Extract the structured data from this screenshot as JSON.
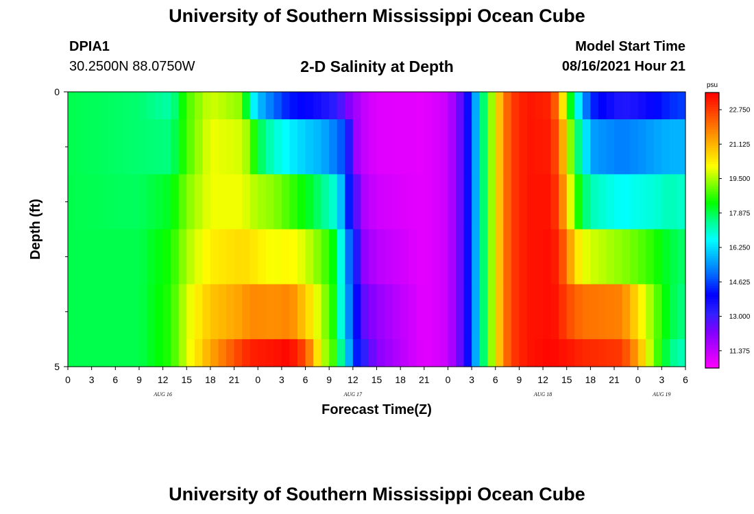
{
  "header": {
    "title": "University of Southern Mississippi Ocean Cube",
    "station_id": "DPIA1",
    "station_coords": "30.2500N  88.0750W",
    "subtitle": "2-D Salinity at Depth",
    "model_start_label": "Model Start Time",
    "model_start_value": "08/16/2021 Hour 21"
  },
  "footer": {
    "title": "University of Southern Mississippi Ocean Cube"
  },
  "chart_data": {
    "type": "heatmap",
    "title": "2-D Salinity at Depth",
    "xlabel": "Forecast Time(Z)",
    "ylabel": "Depth (ft)",
    "x_range_hours": [
      0,
      78
    ],
    "x_step_hours": 3,
    "x_tick_labels": [
      "0",
      "3",
      "6",
      "9",
      "12",
      "15",
      "18",
      "21",
      "0",
      "3",
      "6",
      "9",
      "12",
      "15",
      "18",
      "21",
      "0",
      "3",
      "6",
      "9",
      "12",
      "15",
      "18",
      "21",
      "0",
      "3",
      "6"
    ],
    "day_labels": [
      {
        "label": "AUG 16",
        "hour": 12
      },
      {
        "label": "AUG 17",
        "hour": 36
      },
      {
        "label": "AUG 18",
        "hour": 60
      },
      {
        "label": "AUG 19",
        "hour": 75
      }
    ],
    "y_range": [
      0,
      5
    ],
    "y_tick_labels": [
      {
        "value": 0,
        "label": "0"
      },
      {
        "value": 5,
        "label": "5"
      }
    ],
    "y_minor_ticks": [
      1,
      2,
      3,
      4
    ],
    "depth_levels": [
      0.25,
      1,
      2,
      3,
      4,
      4.75
    ],
    "colorbar": {
      "unit": "psu",
      "range": [
        10.56,
        23.56
      ],
      "colors": [
        "#ff00ff",
        "#c000ff",
        "#8000ff",
        "#3020ff",
        "#0000ff",
        "#0060ff",
        "#00b0ff",
        "#00ffff",
        "#00ff90",
        "#00ff00",
        "#80ff00",
        "#ffff00",
        "#ffc000",
        "#ff8000",
        "#ff4000",
        "#ff0000"
      ],
      "tick_labels": [
        "11.375",
        "13.000",
        "14.625",
        "16.250",
        "17.875",
        "19.500",
        "21.125",
        "22.750"
      ]
    },
    "control_points": [
      {
        "t": 0,
        "values": [
          17.9,
          17.9,
          17.9,
          17.9,
          17.9,
          17.9
        ]
      },
      {
        "t": 9,
        "values": [
          17.7,
          17.7,
          17.8,
          17.9,
          17.9,
          17.9
        ]
      },
      {
        "t": 13,
        "values": [
          17.3,
          17.6,
          18.2,
          18.5,
          18.6,
          18.6
        ]
      },
      {
        "t": 15,
        "values": [
          18.8,
          18.8,
          19.2,
          19.5,
          19.8,
          19.8
        ]
      },
      {
        "t": 18,
        "values": [
          19.8,
          20.0,
          20.0,
          20.3,
          20.9,
          21.3
        ]
      },
      {
        "t": 22,
        "values": [
          19.3,
          19.8,
          20.0,
          20.6,
          21.4,
          22.8
        ]
      },
      {
        "t": 23,
        "values": [
          17.0,
          19.2,
          19.7,
          20.5,
          21.7,
          23.1
        ]
      },
      {
        "t": 24,
        "values": [
          16.0,
          18.0,
          19.5,
          20.3,
          21.7,
          23.2
        ]
      },
      {
        "t": 26,
        "values": [
          15.0,
          17.0,
          19.3,
          20.0,
          21.6,
          23.3
        ]
      },
      {
        "t": 28,
        "values": [
          14.2,
          16.5,
          18.8,
          20.2,
          21.8,
          23.5
        ]
      },
      {
        "t": 30,
        "values": [
          14.0,
          16.1,
          18.3,
          19.8,
          20.8,
          22.5
        ]
      },
      {
        "t": 32,
        "values": [
          13.6,
          15.8,
          17.6,
          19.1,
          19.6,
          19.8
        ]
      },
      {
        "t": 34,
        "values": [
          13.2,
          15.1,
          16.8,
          18.1,
          18.2,
          18.5
        ]
      },
      {
        "t": 35,
        "values": [
          12.5,
          14.6,
          15.0,
          15.5,
          15.6,
          16.5
        ]
      },
      {
        "t": 36,
        "values": [
          12.0,
          12.2,
          13.5,
          14.6,
          15.0,
          15.0
        ]
      },
      {
        "t": 37,
        "values": [
          11.5,
          11.5,
          11.8,
          12.2,
          12.8,
          13.5
        ]
      },
      {
        "t": 39,
        "values": [
          11.0,
          11.0,
          11.2,
          11.5,
          12.0,
          12.2
        ]
      },
      {
        "t": 45,
        "values": [
          10.9,
          10.9,
          10.9,
          10.9,
          10.9,
          10.9
        ]
      },
      {
        "t": 48,
        "values": [
          11.3,
          11.3,
          11.3,
          11.3,
          11.3,
          11.3
        ]
      },
      {
        "t": 50,
        "values": [
          13.0,
          13.0,
          13.0,
          13.0,
          13.0,
          13.0
        ]
      },
      {
        "t": 51,
        "values": [
          14.6,
          14.6,
          14.6,
          14.6,
          14.6,
          14.6
        ]
      },
      {
        "t": 52,
        "values": [
          16.8,
          16.8,
          16.8,
          16.8,
          16.8,
          16.8
        ]
      },
      {
        "t": 53,
        "values": [
          18.6,
          18.6,
          18.6,
          18.6,
          18.6,
          18.6
        ]
      },
      {
        "t": 54,
        "values": [
          20.2,
          20.2,
          20.2,
          20.2,
          20.2,
          20.2
        ]
      },
      {
        "t": 55,
        "values": [
          21.7,
          21.7,
          21.7,
          21.7,
          21.7,
          21.7
        ]
      },
      {
        "t": 56,
        "values": [
          22.7,
          22.7,
          22.7,
          22.7,
          22.7,
          22.7
        ]
      },
      {
        "t": 58,
        "values": [
          23.3,
          23.3,
          23.3,
          23.3,
          23.3,
          23.3
        ]
      },
      {
        "t": 61,
        "values": [
          23.1,
          23.2,
          23.3,
          23.4,
          23.4,
          23.5
        ]
      },
      {
        "t": 62,
        "values": [
          21.6,
          22.2,
          22.6,
          23.0,
          23.2,
          23.4
        ]
      },
      {
        "t": 63,
        "values": [
          19.3,
          20.3,
          20.8,
          21.9,
          22.6,
          23.3
        ]
      },
      {
        "t": 64,
        "values": [
          17.2,
          18.2,
          19.0,
          20.7,
          22.3,
          23.2
        ]
      },
      {
        "t": 65,
        "values": [
          15.8,
          17.0,
          18.0,
          20.0,
          22.0,
          23.0
        ]
      },
      {
        "t": 66,
        "values": [
          14.4,
          15.6,
          17.2,
          19.8,
          22.0,
          23.0
        ]
      },
      {
        "t": 70,
        "values": [
          13.4,
          15.2,
          16.6,
          19.3,
          21.8,
          22.8
        ]
      },
      {
        "t": 72,
        "values": [
          13.6,
          15.4,
          16.8,
          19.0,
          20.5,
          21.3
        ]
      },
      {
        "t": 74,
        "values": [
          14.0,
          15.6,
          16.9,
          18.6,
          19.2,
          19.2
        ]
      },
      {
        "t": 76,
        "values": [
          14.4,
          15.8,
          17.2,
          18.0,
          18.0,
          17.6
        ]
      },
      {
        "t": 78,
        "values": [
          14.6,
          15.8,
          17.0,
          17.7,
          17.5,
          17.1
        ]
      }
    ]
  }
}
